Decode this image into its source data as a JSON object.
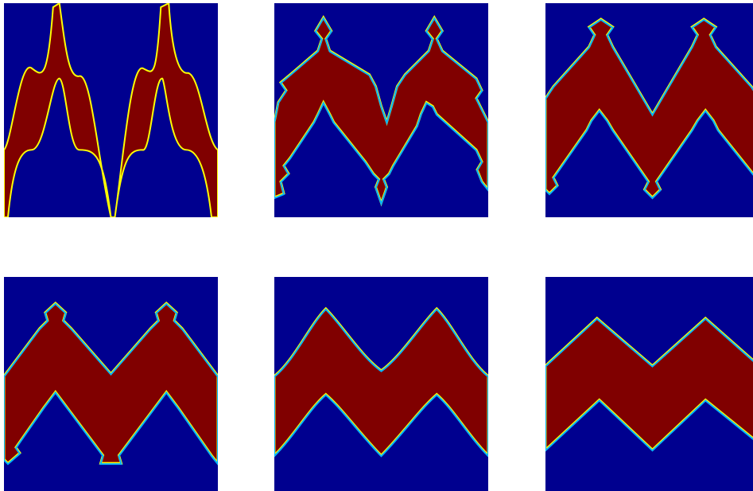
{
  "figure": {
    "layout": {
      "rows": 2,
      "cols": 3
    },
    "colormap": {
      "low": "#00008f",
      "mid": "#ffff00",
      "high": "#800000"
    },
    "panels": [
      {
        "id": 1,
        "shape": "sinusoidal band with tall spikes"
      },
      {
        "id": 2,
        "shape": "zigzag band with multiple notches"
      },
      {
        "id": 3,
        "shape": "zigzag band with single notches"
      },
      {
        "id": 4,
        "shape": "zigzag band with small notches"
      },
      {
        "id": 5,
        "shape": "smooth zigzag band"
      },
      {
        "id": 6,
        "shape": "sharp zigzag band"
      }
    ]
  }
}
